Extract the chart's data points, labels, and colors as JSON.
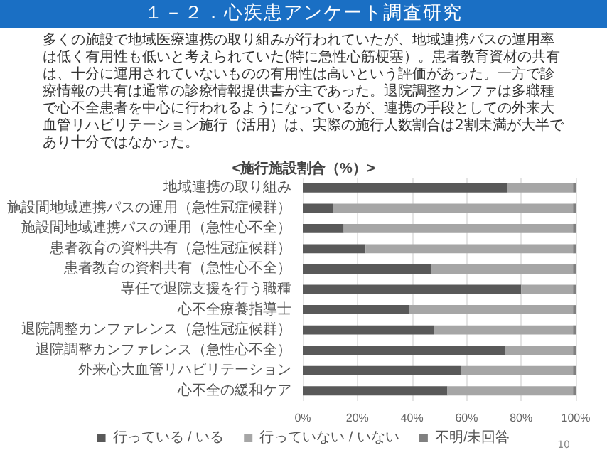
{
  "chart_data": {
    "type": "bar",
    "orientation": "horizontal",
    "stacked": true,
    "title": "１－２．心疾患アンケート調査研究",
    "subtitle": "<施行施設割合（%）>",
    "annotations": [
      "多くの施設で地域医療連携の取り組みが行われていたが、地域連携パスの運用率は低く有用性も低いと考えられていた(特に急性心筋梗塞）。患者教育資材の共有は、十分に運用されていないものの有用性は高いという評価があった。一方で診療情報の共有は通常の診療情報提供書が主であった。退院調整カンファは多職種で心不全患者を中心に行われるようになっているが、連携の手段としての外来大血管リハビリテーション施行（活用）は、実際の施行人数割合は2割未満が大半であり十分ではなかった。",
      "10"
    ],
    "categories": [
      "地域連携の取り組み",
      "施設間地域連携パスの運用（急性冠症候群）",
      "施設間地域連携パスの運用（急性心不全）",
      "患者教育の資料共有（急性冠症候群）",
      "患者教育の資料共有（急性心不全）",
      "専任で退院支援を行う職種",
      "心不全療養指導士",
      "退院調整カンファレンス（急性冠症候群）",
      "退院調整カンファレンス（急性心不全）",
      "外来心大血管リハビリテーション",
      "心不全の緩和ケア"
    ],
    "series": [
      {
        "name": "行っている / いる",
        "color": "#595959",
        "values": [
          75,
          11,
          15,
          23,
          47,
          80,
          39,
          48,
          74,
          58,
          53
        ]
      },
      {
        "name": "行っていない / いない",
        "color": "#a6a6a6",
        "values": [
          24,
          88,
          84,
          76,
          52,
          19,
          60,
          51,
          25,
          41,
          46
        ]
      },
      {
        "name": "不明/未回答",
        "color": "#808080",
        "values": [
          1,
          1,
          1,
          1,
          1,
          1,
          1,
          1,
          1,
          1,
          1
        ]
      }
    ],
    "xlim": [
      0,
      100
    ],
    "xticks": [
      {
        "value": 0,
        "label": "0%"
      },
      {
        "value": 20,
        "label": "20%"
      },
      {
        "value": 40,
        "label": "40%"
      },
      {
        "value": 60,
        "label": "60%"
      },
      {
        "value": 80,
        "label": "80%"
      },
      {
        "value": 100,
        "label": "100%"
      }
    ],
    "grid": "x",
    "legend": "bottom"
  }
}
